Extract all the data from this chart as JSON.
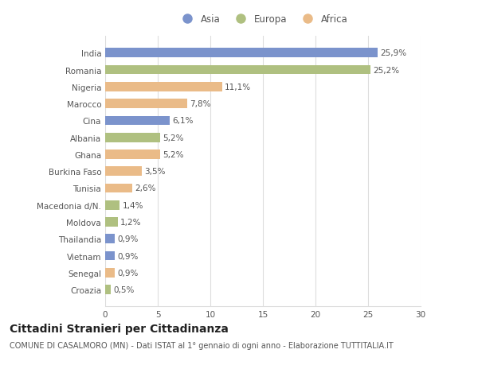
{
  "countries": [
    "India",
    "Romania",
    "Nigeria",
    "Marocco",
    "Cina",
    "Albania",
    "Ghana",
    "Burkina Faso",
    "Tunisia",
    "Macedonia d/N.",
    "Moldova",
    "Thailandia",
    "Vietnam",
    "Senegal",
    "Croazia"
  ],
  "values": [
    25.9,
    25.2,
    11.1,
    7.8,
    6.1,
    5.2,
    5.2,
    3.5,
    2.6,
    1.4,
    1.2,
    0.9,
    0.9,
    0.9,
    0.5
  ],
  "labels": [
    "25,9%",
    "25,2%",
    "11,1%",
    "7,8%",
    "6,1%",
    "5,2%",
    "5,2%",
    "3,5%",
    "2,6%",
    "1,4%",
    "1,2%",
    "0,9%",
    "0,9%",
    "0,9%",
    "0,5%"
  ],
  "continents": [
    "Asia",
    "Europa",
    "Africa",
    "Africa",
    "Asia",
    "Europa",
    "Africa",
    "Africa",
    "Africa",
    "Europa",
    "Europa",
    "Asia",
    "Asia",
    "Africa",
    "Europa"
  ],
  "colors": {
    "Asia": "#7b93cc",
    "Europa": "#afc080",
    "Africa": "#eabb88"
  },
  "title": "Cittadini Stranieri per Cittadinanza",
  "subtitle": "COMUNE DI CASALMORO (MN) - Dati ISTAT al 1° gennaio di ogni anno - Elaborazione TUTTITALIA.IT",
  "xlim": [
    0,
    30
  ],
  "xticks": [
    0,
    5,
    10,
    15,
    20,
    25,
    30
  ],
  "background_color": "#ffffff",
  "grid_color": "#dddddd",
  "bar_height": 0.55,
  "title_fontsize": 10,
  "subtitle_fontsize": 7,
  "label_fontsize": 7.5,
  "tick_fontsize": 7.5,
  "legend_fontsize": 8.5,
  "text_color": "#555555",
  "title_color": "#222222"
}
